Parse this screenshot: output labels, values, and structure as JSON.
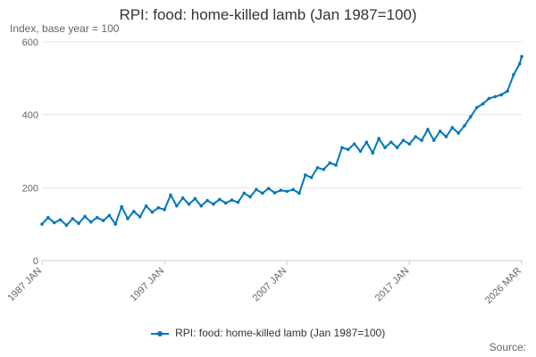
{
  "chart_data": {
    "type": "line",
    "title": "RPI: food: home-killed lamb (Jan 1987=100)",
    "ylabel": "Index, base year = 100",
    "ylim": [
      0,
      600
    ],
    "yticks": [
      0,
      200,
      400,
      600
    ],
    "x_tick_labels": [
      "1987 JAN",
      "1997 JAN",
      "2007 JAN",
      "2017 JAN",
      "2026 MAR"
    ],
    "x_tick_dates": [
      "1987-01",
      "1997-01",
      "2007-01",
      "2017-01",
      "2026-03"
    ],
    "xlim": [
      "1987-01",
      "2026-03"
    ],
    "legend_position": "bottom",
    "grid": "horizontal",
    "colors": {
      "series": "#0077bb",
      "grid": "#e5e5e5",
      "axis": "#cccccc"
    },
    "series": [
      {
        "name": "RPI: food: home-killed lamb (Jan 1987=100)",
        "x": [
          "1987-01",
          "1987-07",
          "1988-01",
          "1988-07",
          "1989-01",
          "1989-07",
          "1990-01",
          "1990-07",
          "1991-01",
          "1991-07",
          "1992-01",
          "1992-07",
          "1993-01",
          "1993-07",
          "1994-01",
          "1994-07",
          "1995-01",
          "1995-07",
          "1996-01",
          "1996-07",
          "1997-01",
          "1997-07",
          "1998-01",
          "1998-07",
          "1999-01",
          "1999-07",
          "2000-01",
          "2000-07",
          "2001-01",
          "2001-07",
          "2002-01",
          "2002-07",
          "2003-01",
          "2003-07",
          "2004-01",
          "2004-07",
          "2005-01",
          "2005-07",
          "2006-01",
          "2006-07",
          "2007-01",
          "2007-07",
          "2008-01",
          "2008-07",
          "2009-01",
          "2009-07",
          "2010-01",
          "2010-07",
          "2011-01",
          "2011-07",
          "2012-01",
          "2012-07",
          "2013-01",
          "2013-07",
          "2014-01",
          "2014-07",
          "2015-01",
          "2015-07",
          "2016-01",
          "2016-07",
          "2017-01",
          "2017-07",
          "2018-01",
          "2018-07",
          "2019-01",
          "2019-07",
          "2020-01",
          "2020-07",
          "2021-01",
          "2021-07",
          "2022-01",
          "2022-07",
          "2023-01",
          "2023-07",
          "2024-01",
          "2024-07",
          "2025-01",
          "2025-07",
          "2026-01",
          "2026-03"
        ],
        "y": [
          100,
          118,
          104,
          112,
          97,
          115,
          102,
          121,
          106,
          118,
          110,
          124,
          100,
          148,
          115,
          135,
          120,
          150,
          133,
          145,
          140,
          180,
          150,
          172,
          155,
          170,
          150,
          165,
          155,
          168,
          158,
          166,
          160,
          185,
          175,
          195,
          185,
          198,
          186,
          193,
          190,
          195,
          185,
          235,
          228,
          255,
          250,
          268,
          262,
          310,
          305,
          320,
          300,
          325,
          295,
          335,
          310,
          325,
          310,
          330,
          320,
          340,
          330,
          360,
          330,
          355,
          340,
          365,
          350,
          370,
          395,
          420,
          430,
          445,
          450,
          455,
          465,
          510,
          540,
          560
        ]
      }
    ]
  },
  "legend": {
    "label": "RPI: food: home-killed lamb (Jan 1987=100)"
  },
  "source_label": "Source:"
}
